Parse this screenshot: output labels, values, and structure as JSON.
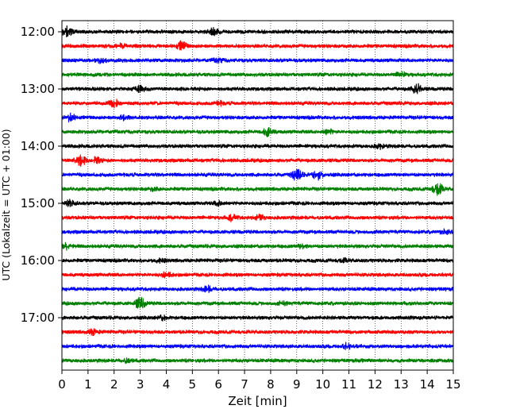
{
  "chart_data": {
    "type": "line",
    "title": "",
    "xlabel": "Zeit  [min]",
    "ylabel": "UTC (Lokalzeit = UTC + 01:00)",
    "xlim": [
      0,
      15
    ],
    "x_ticks": [
      "0",
      "1",
      "2",
      "3",
      "4",
      "5",
      "6",
      "7",
      "8",
      "9",
      "10",
      "11",
      "12",
      "13",
      "14",
      "15"
    ],
    "y_ticks": [
      "12:00",
      "13:00",
      "14:00",
      "15:00",
      "16:00",
      "17:00"
    ],
    "grid": "vertical-dotted",
    "trace_colors": [
      "#000000",
      "#ff0000",
      "#0000ff",
      "#008000"
    ],
    "trace_interval_min": 15,
    "series": [
      {
        "start": "12:00",
        "color": "#000000",
        "events": [
          [
            0.2,
            1.0
          ],
          [
            5.8,
            0.7
          ]
        ]
      },
      {
        "start": "12:15",
        "color": "#ff0000",
        "events": [
          [
            4.6,
            0.9
          ],
          [
            2.3,
            0.4
          ]
        ]
      },
      {
        "start": "12:30",
        "color": "#0000ff",
        "events": [
          [
            1.5,
            0.4
          ],
          [
            6.0,
            0.35
          ]
        ]
      },
      {
        "start": "12:45",
        "color": "#008000",
        "events": [
          [
            13.0,
            0.45
          ]
        ]
      },
      {
        "start": "13:00",
        "color": "#000000",
        "events": [
          [
            3.0,
            0.6
          ],
          [
            13.6,
            1.0
          ]
        ]
      },
      {
        "start": "13:15",
        "color": "#ff0000",
        "events": [
          [
            2.0,
            0.7
          ],
          [
            6.0,
            0.4
          ]
        ]
      },
      {
        "start": "13:30",
        "color": "#0000ff",
        "events": [
          [
            0.3,
            0.8
          ],
          [
            2.4,
            0.5
          ]
        ]
      },
      {
        "start": "13:45",
        "color": "#008000",
        "events": [
          [
            7.9,
            0.9
          ],
          [
            10.2,
            0.5
          ]
        ]
      },
      {
        "start": "14:00",
        "color": "#000000",
        "events": [
          [
            12.2,
            0.45
          ]
        ]
      },
      {
        "start": "14:15",
        "color": "#ff0000",
        "events": [
          [
            0.7,
            1.2
          ],
          [
            1.3,
            0.6
          ]
        ]
      },
      {
        "start": "14:30",
        "color": "#0000ff",
        "events": [
          [
            9.0,
            1.2
          ],
          [
            9.8,
            0.9
          ]
        ]
      },
      {
        "start": "14:45",
        "color": "#008000",
        "events": [
          [
            14.4,
            1.3
          ],
          [
            3.5,
            0.3
          ]
        ]
      },
      {
        "start": "15:00",
        "color": "#000000",
        "events": [
          [
            0.3,
            0.6
          ],
          [
            6.0,
            0.4
          ]
        ]
      },
      {
        "start": "15:15",
        "color": "#ff0000",
        "events": [
          [
            6.5,
            0.6
          ],
          [
            7.6,
            0.5
          ]
        ]
      },
      {
        "start": "15:30",
        "color": "#0000ff",
        "events": [
          [
            14.7,
            0.4
          ]
        ]
      },
      {
        "start": "15:45",
        "color": "#008000",
        "events": [
          [
            0.2,
            0.6
          ],
          [
            9.2,
            0.35
          ]
        ]
      },
      {
        "start": "16:00",
        "color": "#000000",
        "events": [
          [
            3.8,
            0.3
          ],
          [
            10.8,
            0.3
          ]
        ]
      },
      {
        "start": "16:15",
        "color": "#ff0000",
        "events": [
          [
            4.0,
            0.45
          ]
        ]
      },
      {
        "start": "16:30",
        "color": "#0000ff",
        "events": [
          [
            5.6,
            0.6
          ]
        ]
      },
      {
        "start": "16:45",
        "color": "#008000",
        "events": [
          [
            3.0,
            1.2
          ],
          [
            8.5,
            0.3
          ]
        ]
      },
      {
        "start": "17:00",
        "color": "#000000",
        "events": [
          [
            3.9,
            0.45
          ]
        ]
      },
      {
        "start": "17:15",
        "color": "#ff0000",
        "events": [
          [
            1.2,
            0.5
          ]
        ]
      },
      {
        "start": "17:30",
        "color": "#0000ff",
        "events": [
          [
            10.9,
            0.55
          ]
        ]
      },
      {
        "start": "17:45",
        "color": "#008000",
        "events": [
          [
            2.5,
            0.35
          ]
        ]
      }
    ]
  }
}
